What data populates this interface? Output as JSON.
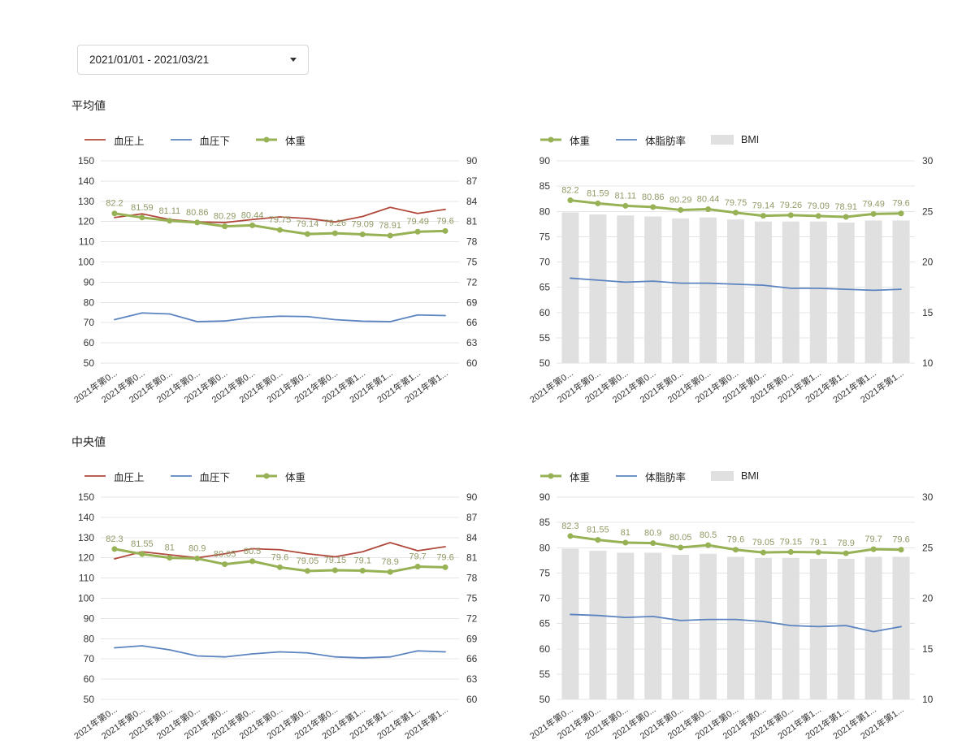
{
  "date_control": {
    "value": "2021/01/01 - 2021/03/21"
  },
  "sections": [
    {
      "title": "平均値"
    },
    {
      "title": "中央値"
    }
  ],
  "chart_data": [
    {
      "id": "average-blood-pressure-weight",
      "type": "line",
      "categories": [
        "2021年第0...",
        "2021年第0...",
        "2021年第0...",
        "2021年第0...",
        "2021年第0...",
        "2021年第0...",
        "2021年第0...",
        "2021年第0...",
        "2021年第0...",
        "2021年第1...",
        "2021年第1...",
        "2021年第1...",
        "2021年第1..."
      ],
      "axes": {
        "left": {
          "min": 50,
          "max": 150,
          "ticks": [
            50,
            60,
            70,
            80,
            90,
            100,
            110,
            120,
            130,
            140,
            150
          ]
        },
        "right": {
          "min": 60,
          "max": 90,
          "ticks": [
            60,
            63,
            66,
            69,
            72,
            75,
            78,
            81,
            84,
            87,
            90
          ]
        }
      },
      "series": [
        {
          "id": "bp-upper",
          "name": "血圧上",
          "type": "line",
          "axis": "left",
          "color": "#b0493c",
          "line_width": 1.8,
          "values": [
            122,
            123.8,
            121,
            119.8,
            119.5,
            121,
            122.3,
            121.5,
            119.8,
            122.5,
            127,
            124,
            126
          ]
        },
        {
          "id": "bp-lower",
          "name": "血圧下",
          "type": "line",
          "axis": "left",
          "color": "#5b84c0",
          "line_width": 1.8,
          "values": [
            71.5,
            74.8,
            74.3,
            70.5,
            70.8,
            72.5,
            73.2,
            73,
            71.5,
            70.7,
            70.5,
            73.8,
            73.5
          ]
        },
        {
          "id": "weight",
          "name": "体重",
          "type": "line",
          "axis": "right",
          "color": "#97b155",
          "line_width": 3,
          "points": true,
          "show_labels": true,
          "label_color": "#8f9a65",
          "values": [
            82.2,
            81.59,
            81.11,
            80.86,
            80.29,
            80.44,
            79.75,
            79.14,
            79.26,
            79.09,
            78.91,
            79.49,
            79.6
          ]
        }
      ]
    },
    {
      "id": "average-weight-bodyfat-bmi",
      "type": "mixed",
      "categories": [
        "2021年第0...",
        "2021年第0...",
        "2021年第0...",
        "2021年第0...",
        "2021年第0...",
        "2021年第0...",
        "2021年第0...",
        "2021年第0...",
        "2021年第0...",
        "2021年第1...",
        "2021年第1...",
        "2021年第1...",
        "2021年第1..."
      ],
      "axes": {
        "left": {
          "min": 50,
          "max": 90,
          "ticks": [
            50,
            55,
            60,
            65,
            70,
            75,
            80,
            85,
            90
          ]
        },
        "right": {
          "min": 10,
          "max": 30,
          "ticks": [
            10,
            15,
            20,
            25,
            30
          ]
        }
      },
      "series": [
        {
          "id": "weight",
          "name": "体重",
          "type": "line",
          "axis": "left",
          "color": "#97b155",
          "line_width": 3,
          "points": true,
          "show_labels": true,
          "label_color": "#8f9a65",
          "values": [
            82.2,
            81.59,
            81.11,
            80.86,
            80.29,
            80.44,
            79.75,
            79.14,
            79.26,
            79.09,
            78.91,
            79.49,
            79.6
          ]
        },
        {
          "id": "body-fat",
          "name": "体脂肪率",
          "type": "line",
          "axis": "right",
          "color": "#5b84c0",
          "line_width": 1.8,
          "values": [
            18.4,
            18.2,
            18,
            18.1,
            17.9,
            17.9,
            17.8,
            17.7,
            17.4,
            17.4,
            17.3,
            17.2,
            17.3
          ]
        },
        {
          "id": "bmi",
          "name": "BMI",
          "type": "bar",
          "axis": "right",
          "color": "#e0e0e0",
          "values": [
            24.9,
            24.7,
            24.6,
            24.5,
            24.3,
            24.4,
            24.2,
            24,
            24,
            24,
            23.9,
            24.1,
            24.1
          ]
        }
      ]
    },
    {
      "id": "median-blood-pressure-weight",
      "type": "line",
      "categories": [
        "2021年第0...",
        "2021年第0...",
        "2021年第0...",
        "2021年第0...",
        "2021年第0...",
        "2021年第0...",
        "2021年第0...",
        "2021年第0...",
        "2021年第0...",
        "2021年第1...",
        "2021年第1...",
        "2021年第1...",
        "2021年第1..."
      ],
      "axes": {
        "left": {
          "min": 50,
          "max": 150,
          "ticks": [
            50,
            60,
            70,
            80,
            90,
            100,
            110,
            120,
            130,
            140,
            150
          ]
        },
        "right": {
          "min": 60,
          "max": 90,
          "ticks": [
            60,
            63,
            66,
            69,
            72,
            75,
            78,
            81,
            84,
            87,
            90
          ]
        }
      },
      "series": [
        {
          "id": "bp-upper",
          "name": "血圧上",
          "type": "line",
          "axis": "left",
          "color": "#b0493c",
          "line_width": 1.8,
          "values": [
            119.5,
            123,
            121.5,
            120,
            122,
            124.5,
            124,
            122,
            120.5,
            123,
            127.5,
            123.5,
            125.5
          ]
        },
        {
          "id": "bp-lower",
          "name": "血圧下",
          "type": "line",
          "axis": "left",
          "color": "#5b84c0",
          "line_width": 1.8,
          "values": [
            75.5,
            76.5,
            74.5,
            71.5,
            71,
            72.5,
            73.5,
            73,
            71,
            70.5,
            71,
            74,
            73.5
          ]
        },
        {
          "id": "weight",
          "name": "体重",
          "type": "line",
          "axis": "right",
          "color": "#97b155",
          "line_width": 3,
          "points": true,
          "show_labels": true,
          "label_color": "#8f9a65",
          "values": [
            82.3,
            81.55,
            81,
            80.9,
            80.05,
            80.5,
            79.6,
            79.05,
            79.15,
            79.1,
            78.9,
            79.7,
            79.6
          ]
        }
      ]
    },
    {
      "id": "median-weight-bodyfat-bmi",
      "type": "mixed",
      "categories": [
        "2021年第0...",
        "2021年第0...",
        "2021年第0...",
        "2021年第0...",
        "2021年第0...",
        "2021年第0...",
        "2021年第0...",
        "2021年第0...",
        "2021年第0...",
        "2021年第1...",
        "2021年第1...",
        "2021年第1...",
        "2021年第1..."
      ],
      "axes": {
        "left": {
          "min": 50,
          "max": 90,
          "ticks": [
            50,
            55,
            60,
            65,
            70,
            75,
            80,
            85,
            90
          ]
        },
        "right": {
          "min": 10,
          "max": 30,
          "ticks": [
            10,
            15,
            20,
            25,
            30
          ]
        }
      },
      "series": [
        {
          "id": "weight",
          "name": "体重",
          "type": "line",
          "axis": "left",
          "color": "#97b155",
          "line_width": 3,
          "points": true,
          "show_labels": true,
          "label_color": "#8f9a65",
          "values": [
            82.3,
            81.55,
            81,
            80.9,
            80.05,
            80.5,
            79.6,
            79.05,
            79.15,
            79.1,
            78.9,
            79.7,
            79.6
          ]
        },
        {
          "id": "body-fat",
          "name": "体脂肪率",
          "type": "line",
          "axis": "right",
          "color": "#5b84c0",
          "line_width": 1.8,
          "values": [
            18.4,
            18.3,
            18.1,
            18.2,
            17.8,
            17.9,
            17.9,
            17.7,
            17.3,
            17.2,
            17.3,
            16.7,
            17.2
          ]
        },
        {
          "id": "bmi",
          "name": "BMI",
          "type": "bar",
          "axis": "right",
          "color": "#e0e0e0",
          "values": [
            24.9,
            24.7,
            24.5,
            24.5,
            24.3,
            24.4,
            24.1,
            24,
            24,
            23.9,
            23.9,
            24.1,
            24.1
          ]
        }
      ]
    }
  ]
}
